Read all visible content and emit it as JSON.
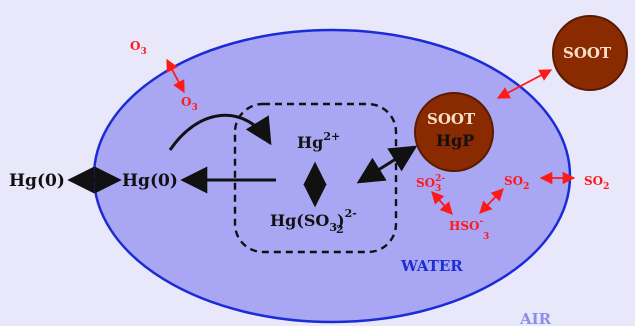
{
  "colors": {
    "air_background": "#e9e8fb",
    "water_fill": "#a9a7f4",
    "water_stroke": "#1b2bd6",
    "soot_fill": "#8a2a00",
    "soot_stroke": "#5a1a00",
    "soot_text": "#f7e0c9",
    "red_species": "#ff1a1a",
    "black_species": "#111111",
    "water_label": "#1c2fd2",
    "air_label": "#8b8fe6"
  },
  "labels": {
    "hg0_air": "Hg(0)",
    "hg0_water": "Hg(0)",
    "hg2_base": "Hg",
    "hg2_sup": "2+",
    "hgso3_base": "Hg(SO",
    "hgso3_sub1": "3",
    "hgso3_close": ")",
    "hgso3_sub2": "2",
    "hgso3_sup": "2-",
    "o3_air_base": "O",
    "o3_air_sub": "3",
    "o3_water_base": "O",
    "o3_water_sub": "3",
    "soot_water": "SOOT",
    "hgp": "HgP",
    "soot_air": "SOOT",
    "so3_base": "SO",
    "so3_sub": "3",
    "so3_sup": "2-",
    "hso3_base": "HSO",
    "hso3_sub": "3",
    "hso3_sup": "-",
    "so2_water_base": "SO",
    "so2_water_sub": "2",
    "so2_air_base": "SO",
    "so2_air_sub": "2",
    "water": "WATER",
    "air": "AIR"
  }
}
